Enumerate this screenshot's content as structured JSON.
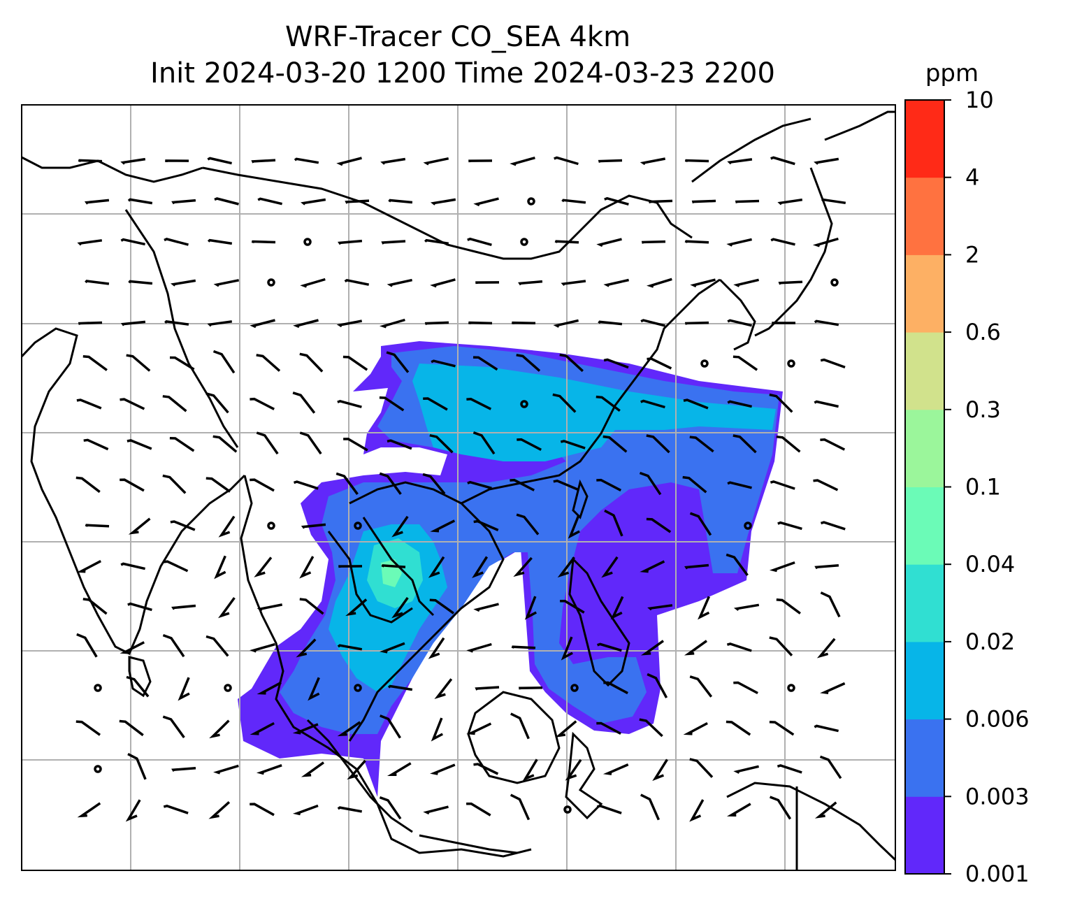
{
  "title": {
    "line1": "WRF-Tracer CO_SEA 4km",
    "line2": "Init 2024-03-20 1200 Time 2024-03-23 2200"
  },
  "colorbar": {
    "unit": "ppm",
    "levels": [
      "0.001",
      "0.003",
      "0.006",
      "0.02",
      "0.04",
      "0.1",
      "0.3",
      "0.6",
      "2",
      "4",
      "10"
    ],
    "colors": [
      "#6128fa",
      "#3a72f0",
      "#07b5e8",
      "#30dfd2",
      "#6bfbb7",
      "#9bf69b",
      "#d1e28c",
      "#fdb064",
      "#ff7240",
      "#ff2a17"
    ]
  },
  "map": {
    "background": "#ffffff",
    "gridline_color": "#b0b0b0",
    "coastline_color": "#000000",
    "wind_barbs": "black"
  }
}
